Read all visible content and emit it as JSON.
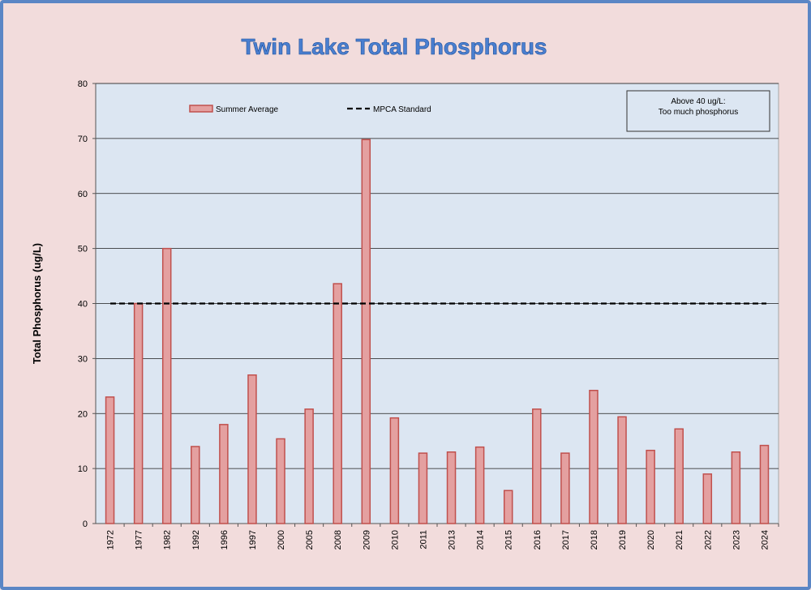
{
  "chart_data": {
    "type": "bar",
    "title": "Twin Lake Total Phosphorus",
    "xlabel": "",
    "ylabel": "Total Phosphorus (ug/L)",
    "ylim": [
      0,
      80
    ],
    "yticks": [
      0,
      10,
      20,
      30,
      40,
      50,
      60,
      70,
      80
    ],
    "grid": true,
    "legend_placement": "top-left",
    "categories": [
      "1972",
      "1977",
      "1982",
      "1992",
      "1996",
      "1997",
      "2000",
      "2005",
      "2008",
      "2009",
      "2010",
      "2011",
      "2013",
      "2014",
      "2015",
      "2016",
      "2017",
      "2018",
      "2019",
      "2020",
      "2021",
      "2022",
      "2023",
      "2024"
    ],
    "series": [
      {
        "name": "Summer Average",
        "values": [
          23,
          40,
          50,
          14,
          18,
          27,
          15.4,
          20.8,
          43.6,
          69.8,
          19.2,
          12.8,
          13,
          13.9,
          6,
          20.8,
          12.8,
          24.2,
          19.4,
          13.3,
          17.2,
          9,
          13,
          14.2
        ],
        "color": "#e4a0a0",
        "stroke": "#c0504d"
      }
    ],
    "reference_lines": [
      {
        "name": "MPCA Standard",
        "value": 40,
        "style": "dashed",
        "color": "#000000"
      }
    ],
    "annotations": [
      {
        "lines": [
          "Above 40 ug/L:",
          "Too much phosphorus"
        ],
        "placement": "top-right"
      }
    ]
  },
  "colors": {
    "page_background": "#f2dcdc",
    "frame_border": "#5b86c5",
    "plot_background": "#dce6f2",
    "title": "#4a7fd0"
  }
}
